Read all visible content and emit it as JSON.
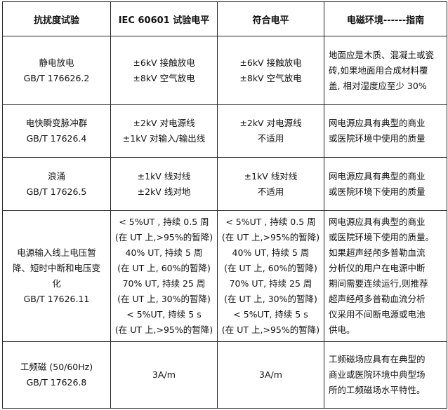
{
  "headers": [
    "抗扰度试验",
    "IEC 60601 试验电平",
    "符合电平",
    "电磁环境------指南"
  ],
  "rows": [
    {
      "test": [
        "静电放电",
        "GB/T 176626.2"
      ],
      "iec": [
        "±6kV 接触放电",
        "±8kV 空气放电"
      ],
      "comp": [
        "±6kV 接触放电",
        "±8kV 空气放电"
      ],
      "guide": [
        "地面应是木质、混凝土或瓷",
        "砖,如果地面用合成材料覆",
        "盖, 相对湿度应至少 30%"
      ]
    },
    {
      "test": [
        "电快瞬变脉冲群",
        "GB/T 17626.4"
      ],
      "iec": [
        "±2kV 对电源线",
        "±1kV 对输入/输出线"
      ],
      "comp": [
        "±2kV 对电源线",
        "不适用"
      ],
      "guide": [
        "网电源应具有典型的商业",
        "或医院环境中使用的质量"
      ]
    },
    {
      "test": [
        "浪涌",
        "GB/T 17626.5"
      ],
      "iec": [
        "±1kV 线对线",
        "±2kV 线对地"
      ],
      "comp": [
        "±1kV 线对线",
        "不适用"
      ],
      "guide": [
        "网电源应具有典型的商业",
        "或医院环境下使用的质量"
      ]
    },
    {
      "test": [
        "电源输入线上电压暂",
        "降、短时中断和电压变",
        "化",
        "GB/T 17626.11"
      ],
      "iec": [
        "< 5%UT , 持续 0.5 周",
        "(在 UT 上,>95%的暂降)",
        "40% UT, 持续 5 周",
        "(在 UT 上, 60%的暂降)",
        "70% UT, 持续 25 周",
        "(在 UT 上, 30%的暂降)",
        "< 5%UT, 持续 5 s",
        "(在 UT 上,>95%的暂降)"
      ],
      "comp": [
        "< 5%UT , 持续 0.5 周",
        "(在 UT 上,>95%的暂降)",
        "40% UT, 持续 5 周",
        "(在 UT 上, 60%的暂降)",
        "70% UT, 持续 25 周",
        "(在 UT 上, 30%的暂降)",
        "< 5%UT, 持续 5 s",
        "(在 UT 上,>95%的暂降)"
      ],
      "guide": [
        "网电源应具有典型的商业",
        "或医院环境下使用的质量。",
        "如果超声经颅多普勒血流",
        "分析仪的用户在电源中断",
        "期间需要连续运行,则推荐",
        "超声经颅多普勒血流分析",
        "仪采用不间断电源或电池",
        "供电。"
      ]
    },
    {
      "test": [
        "工频磁 (50/60Hz)",
        "GB/T 17626.8"
      ],
      "iec": [
        "3A/m"
      ],
      "comp": [
        "3A/m"
      ],
      "guide": [
        "工频磁场应具有在典型的",
        "商业或医院环境中典型场",
        "所的工频磁场水平特性。"
      ]
    }
  ]
}
